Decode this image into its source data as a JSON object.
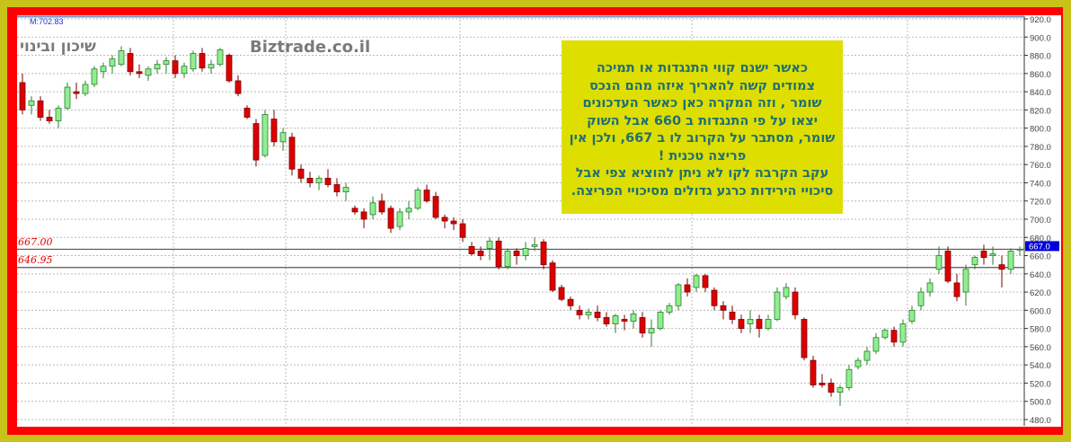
{
  "header": {
    "m_value": "M:702.83",
    "watermark_hebrew": "שיכון ובינוי",
    "watermark_site": "Biztrade.co.il"
  },
  "note": {
    "lines": [
      "כאשר  ישנם   קווי  התנגדות או תמיכה",
      "צמודים  קשה   להאריך איזה מהם  הנכס",
      "שומר , וזה המקרה כאן כאשר העדכונים",
      "יצאו  על פי   התנגדות ב 660  אבל השוק",
      "שומר, מסתבר  על  הקרוב  לו  ב  667, ולכן אין",
      "פריצה טכנית !",
      "עקב  הקרבה  לקו  לא ניתן  להוציא  צפי  אבל",
      "סיכויי  הירידות כרגע  גדולים מסיכויי  הפריצה."
    ]
  },
  "colors": {
    "up_fill": "#90ee90",
    "up_edge": "#2e7d2e",
    "down_fill": "#dd0000",
    "down_edge": "#7a0000",
    "level_line": "#555555",
    "badge": "#0000dd",
    "frame": "#ff0000",
    "outer": "#c9c21a"
  },
  "chart_data": {
    "type": "candlestick",
    "ylim": [
      480,
      920
    ],
    "y_ticks": [
      "920.0",
      "900.0",
      "880.0",
      "860.0",
      "840.0",
      "820.0",
      "800.0",
      "780.0",
      "760.0",
      "740.0",
      "720.0",
      "700.0",
      "680.0",
      "660.0",
      "640.0",
      "620.0",
      "600.0",
      "580.0",
      "560.0",
      "540.0",
      "520.0",
      "500.0",
      "480.0"
    ],
    "grid": true,
    "levels": [
      {
        "value": 667.0,
        "label": "667.00"
      },
      {
        "value": 646.95,
        "label": "646.95"
      }
    ],
    "last_price_label": "667.0",
    "last_price": 667,
    "ohlc": [
      [
        850,
        860,
        815,
        820
      ],
      [
        825,
        835,
        815,
        830
      ],
      [
        830,
        835,
        808,
        812
      ],
      [
        812,
        820,
        805,
        808
      ],
      [
        808,
        825,
        800,
        822
      ],
      [
        822,
        850,
        820,
        845
      ],
      [
        840,
        850,
        832,
        838
      ],
      [
        838,
        852,
        835,
        848
      ],
      [
        848,
        868,
        845,
        865
      ],
      [
        862,
        872,
        855,
        868
      ],
      [
        868,
        880,
        860,
        876
      ],
      [
        870,
        890,
        868,
        885
      ],
      [
        882,
        888,
        858,
        862
      ],
      [
        862,
        870,
        855,
        860
      ],
      [
        858,
        868,
        852,
        865
      ],
      [
        865,
        875,
        860,
        870
      ],
      [
        870,
        878,
        860,
        874
      ],
      [
        874,
        880,
        855,
        860
      ],
      [
        860,
        872,
        855,
        868
      ],
      [
        865,
        885,
        862,
        882
      ],
      [
        882,
        888,
        862,
        866
      ],
      [
        866,
        875,
        860,
        870
      ],
      [
        870,
        888,
        868,
        886
      ],
      [
        880,
        882,
        850,
        852
      ],
      [
        852,
        858,
        835,
        838
      ],
      [
        822,
        825,
        810,
        812
      ],
      [
        805,
        810,
        758,
        765
      ],
      [
        770,
        820,
        768,
        815
      ],
      [
        810,
        820,
        780,
        785
      ],
      [
        785,
        800,
        775,
        795
      ],
      [
        790,
        795,
        748,
        755
      ],
      [
        755,
        760,
        740,
        745
      ],
      [
        745,
        752,
        735,
        740
      ],
      [
        740,
        748,
        732,
        745
      ],
      [
        745,
        755,
        735,
        738
      ],
      [
        738,
        745,
        725,
        730
      ],
      [
        730,
        740,
        720,
        735
      ],
      [
        712,
        715,
        705,
        708
      ],
      [
        708,
        712,
        690,
        700
      ],
      [
        705,
        725,
        700,
        718
      ],
      [
        720,
        728,
        705,
        708
      ],
      [
        712,
        715,
        685,
        690
      ],
      [
        692,
        712,
        688,
        708
      ],
      [
        708,
        720,
        700,
        712
      ],
      [
        712,
        735,
        710,
        732
      ],
      [
        732,
        738,
        718,
        720
      ],
      [
        725,
        730,
        700,
        702
      ],
      [
        702,
        705,
        690,
        698
      ],
      [
        698,
        702,
        688,
        695
      ],
      [
        695,
        700,
        675,
        680
      ],
      [
        670,
        675,
        660,
        662
      ],
      [
        665,
        670,
        655,
        660
      ],
      [
        668,
        680,
        655,
        676
      ],
      [
        676,
        680,
        645,
        648
      ],
      [
        648,
        668,
        645,
        665
      ],
      [
        665,
        668,
        650,
        660
      ],
      [
        660,
        675,
        655,
        668
      ],
      [
        670,
        680,
        665,
        672
      ],
      [
        675,
        678,
        645,
        650
      ],
      [
        652,
        655,
        620,
        622
      ],
      [
        625,
        628,
        610,
        612
      ],
      [
        612,
        615,
        600,
        605
      ],
      [
        600,
        605,
        590,
        595
      ],
      [
        595,
        602,
        590,
        598
      ],
      [
        598,
        605,
        588,
        592
      ],
      [
        592,
        598,
        582,
        585
      ],
      [
        585,
        596,
        575,
        594
      ],
      [
        590,
        595,
        578,
        588
      ],
      [
        588,
        600,
        580,
        596
      ],
      [
        592,
        598,
        570,
        575
      ],
      [
        575,
        590,
        560,
        580
      ],
      [
        580,
        600,
        578,
        598
      ],
      [
        598,
        608,
        595,
        605
      ],
      [
        605,
        630,
        600,
        628
      ],
      [
        628,
        635,
        615,
        620
      ],
      [
        625,
        640,
        620,
        638
      ],
      [
        638,
        640,
        620,
        625
      ],
      [
        622,
        625,
        600,
        605
      ],
      [
        605,
        610,
        590,
        600
      ],
      [
        598,
        605,
        585,
        590
      ],
      [
        590,
        595,
        575,
        580
      ],
      [
        585,
        600,
        575,
        590
      ],
      [
        590,
        595,
        570,
        580
      ],
      [
        580,
        595,
        578,
        590
      ],
      [
        590,
        625,
        588,
        620
      ],
      [
        615,
        630,
        612,
        625
      ],
      [
        620,
        625,
        590,
        595
      ],
      [
        590,
        592,
        545,
        548
      ],
      [
        545,
        550,
        515,
        518
      ],
      [
        520,
        530,
        515,
        518
      ],
      [
        520,
        525,
        505,
        510
      ],
      [
        510,
        518,
        495,
        515
      ],
      [
        515,
        540,
        512,
        535
      ],
      [
        538,
        548,
        535,
        545
      ],
      [
        545,
        560,
        540,
        555
      ],
      [
        555,
        575,
        552,
        570
      ],
      [
        570,
        580,
        568,
        578
      ],
      [
        578,
        582,
        560,
        565
      ],
      [
        565,
        590,
        560,
        585
      ],
      [
        588,
        605,
        585,
        600
      ],
      [
        605,
        625,
        600,
        620
      ],
      [
        620,
        635,
        615,
        630
      ],
      [
        645,
        670,
        640,
        660
      ],
      [
        665,
        670,
        630,
        632
      ],
      [
        630,
        640,
        610,
        615
      ],
      [
        620,
        650,
        605,
        645
      ],
      [
        650,
        660,
        645,
        658
      ],
      [
        665,
        672,
        650,
        658
      ],
      [
        660,
        670,
        650,
        662
      ],
      [
        650,
        660,
        625,
        645
      ],
      [
        645,
        668,
        640,
        665
      ],
      [
        667,
        670,
        660,
        667
      ]
    ]
  }
}
